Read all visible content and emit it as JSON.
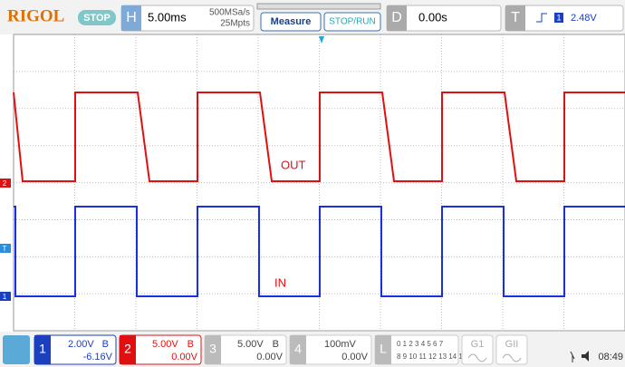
{
  "header": {
    "brand": "RIGOL",
    "status": "STOP",
    "horizontal": {
      "key": "H",
      "timebase": "5.00ms",
      "sample_rate": "500MSa/s",
      "memory": "25Mpts"
    },
    "buttons": [
      "Measure",
      "STOP/RUN"
    ],
    "delay": {
      "key": "D",
      "value": "0.00s"
    },
    "trigger": {
      "key": "T",
      "source": "1",
      "level": "2.48V"
    }
  },
  "screen": {
    "markers": [
      "2",
      "T",
      "1"
    ],
    "labels": {
      "out": "OUT",
      "in": "IN"
    }
  },
  "footer": {
    "channels": [
      {
        "number": "1",
        "scale": "2.00V",
        "bw": "B",
        "offset": "-6.16V"
      },
      {
        "number": "2",
        "scale": "5.00V",
        "bw": "B",
        "offset": "0.00V"
      },
      {
        "number": "3",
        "scale": "5.00V",
        "bw": "B",
        "offset": "0.00V"
      },
      {
        "number": "4",
        "scale": "100mV",
        "offset": "0.00V"
      }
    ],
    "logic": {
      "key": "L",
      "row1": "0 1 2 3  4 5 6 7",
      "row2": "8 9 10 11 12 13 14 15"
    },
    "generators": [
      "G1",
      "GII"
    ],
    "time": "08:49"
  }
}
